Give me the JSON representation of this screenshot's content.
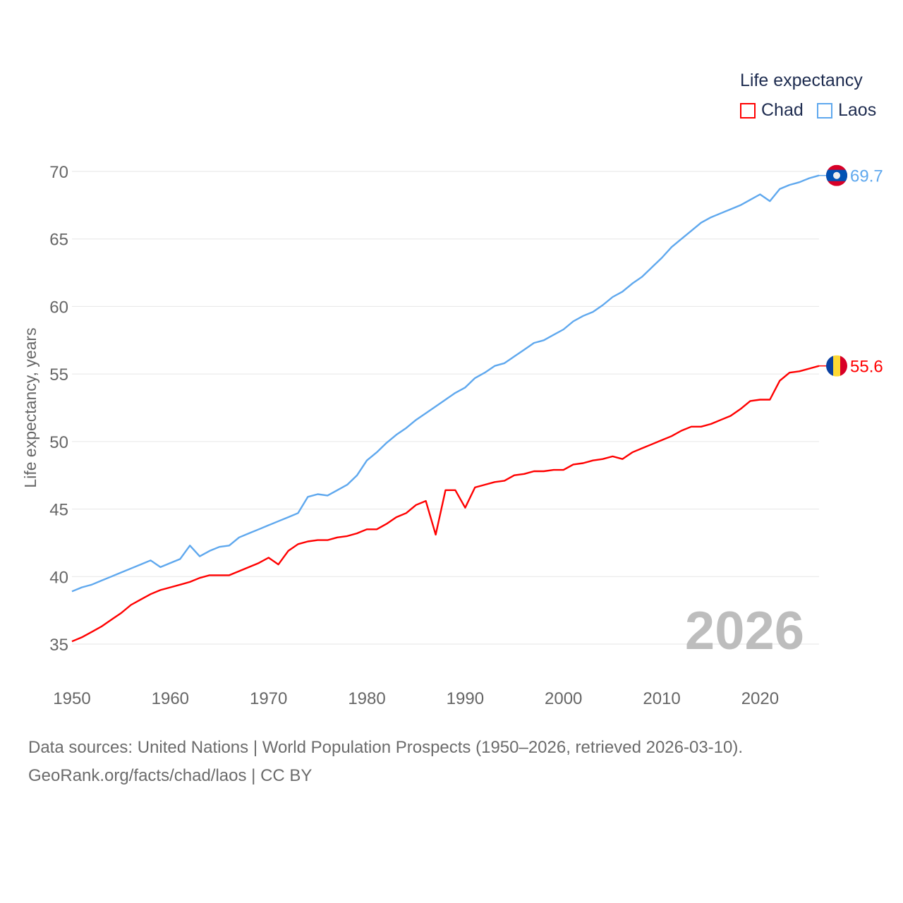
{
  "legend": {
    "title": "Life expectancy",
    "items": [
      {
        "label": "Chad",
        "color": "#ff0000"
      },
      {
        "label": "Laos",
        "color": "#5fa8ee"
      }
    ]
  },
  "footer": {
    "line1": "Data sources: United Nations | World Population Prospects (1950–2026, retrieved 2026-03-10).",
    "line2": "GeoRank.org/facts/chad/laos | CC BY"
  },
  "chart_data": {
    "type": "line",
    "title": "Life expectancy",
    "xlabel": "",
    "ylabel": "Life expectancy, years",
    "xlim": [
      1950,
      2026
    ],
    "ylim": [
      35,
      70
    ],
    "xticks": [
      "1950",
      "1960",
      "1970",
      "1980",
      "1990",
      "2000",
      "2010",
      "2020"
    ],
    "yticks": [
      "35",
      "40",
      "45",
      "50",
      "55",
      "60",
      "65",
      "70"
    ],
    "grid": true,
    "legend_position": "top-right",
    "year_label": "2026",
    "x_start": 1950,
    "series": [
      {
        "name": "Chad",
        "color": "#ff0000",
        "flag": "chad-flag",
        "end_label": "55.6",
        "values": [
          35.2,
          35.5,
          35.9,
          36.3,
          36.8,
          37.3,
          37.9,
          38.3,
          38.7,
          39.0,
          39.2,
          39.4,
          39.6,
          39.9,
          40.1,
          40.1,
          40.1,
          40.4,
          40.7,
          41.0,
          41.4,
          40.9,
          41.9,
          42.4,
          42.6,
          42.7,
          42.7,
          42.9,
          43.0,
          43.2,
          43.5,
          43.5,
          43.9,
          44.4,
          44.7,
          45.3,
          45.6,
          43.1,
          46.4,
          46.4,
          45.1,
          46.6,
          46.8,
          47.0,
          47.1,
          47.5,
          47.6,
          47.8,
          47.8,
          47.9,
          47.9,
          48.3,
          48.4,
          48.6,
          48.7,
          48.9,
          48.7,
          49.2,
          49.5,
          49.8,
          50.1,
          50.4,
          50.8,
          51.1,
          51.1,
          51.3,
          51.6,
          51.9,
          52.4,
          53.0,
          53.1,
          53.1,
          54.5,
          55.1,
          55.2,
          55.4,
          55.6
        ]
      },
      {
        "name": "Laos",
        "color": "#5fa8ee",
        "flag": "laos-flag",
        "end_label": "69.7",
        "values": [
          38.9,
          39.2,
          39.4,
          39.7,
          40.0,
          40.3,
          40.6,
          40.9,
          41.2,
          40.7,
          41.0,
          41.3,
          42.3,
          41.5,
          41.9,
          42.2,
          42.3,
          42.9,
          43.2,
          43.5,
          43.8,
          44.1,
          44.4,
          44.7,
          45.9,
          46.1,
          46.0,
          46.4,
          46.8,
          47.5,
          48.6,
          49.2,
          49.9,
          50.5,
          51.0,
          51.6,
          52.1,
          52.6,
          53.1,
          53.6,
          54.0,
          54.7,
          55.1,
          55.6,
          55.8,
          56.3,
          56.8,
          57.3,
          57.5,
          57.9,
          58.3,
          58.9,
          59.3,
          59.6,
          60.1,
          60.7,
          61.1,
          61.7,
          62.2,
          62.9,
          63.6,
          64.4,
          65.0,
          65.6,
          66.2,
          66.6,
          66.9,
          67.2,
          67.5,
          67.9,
          68.3,
          67.8,
          68.7,
          69.0,
          69.2,
          69.5,
          69.7
        ]
      }
    ]
  }
}
